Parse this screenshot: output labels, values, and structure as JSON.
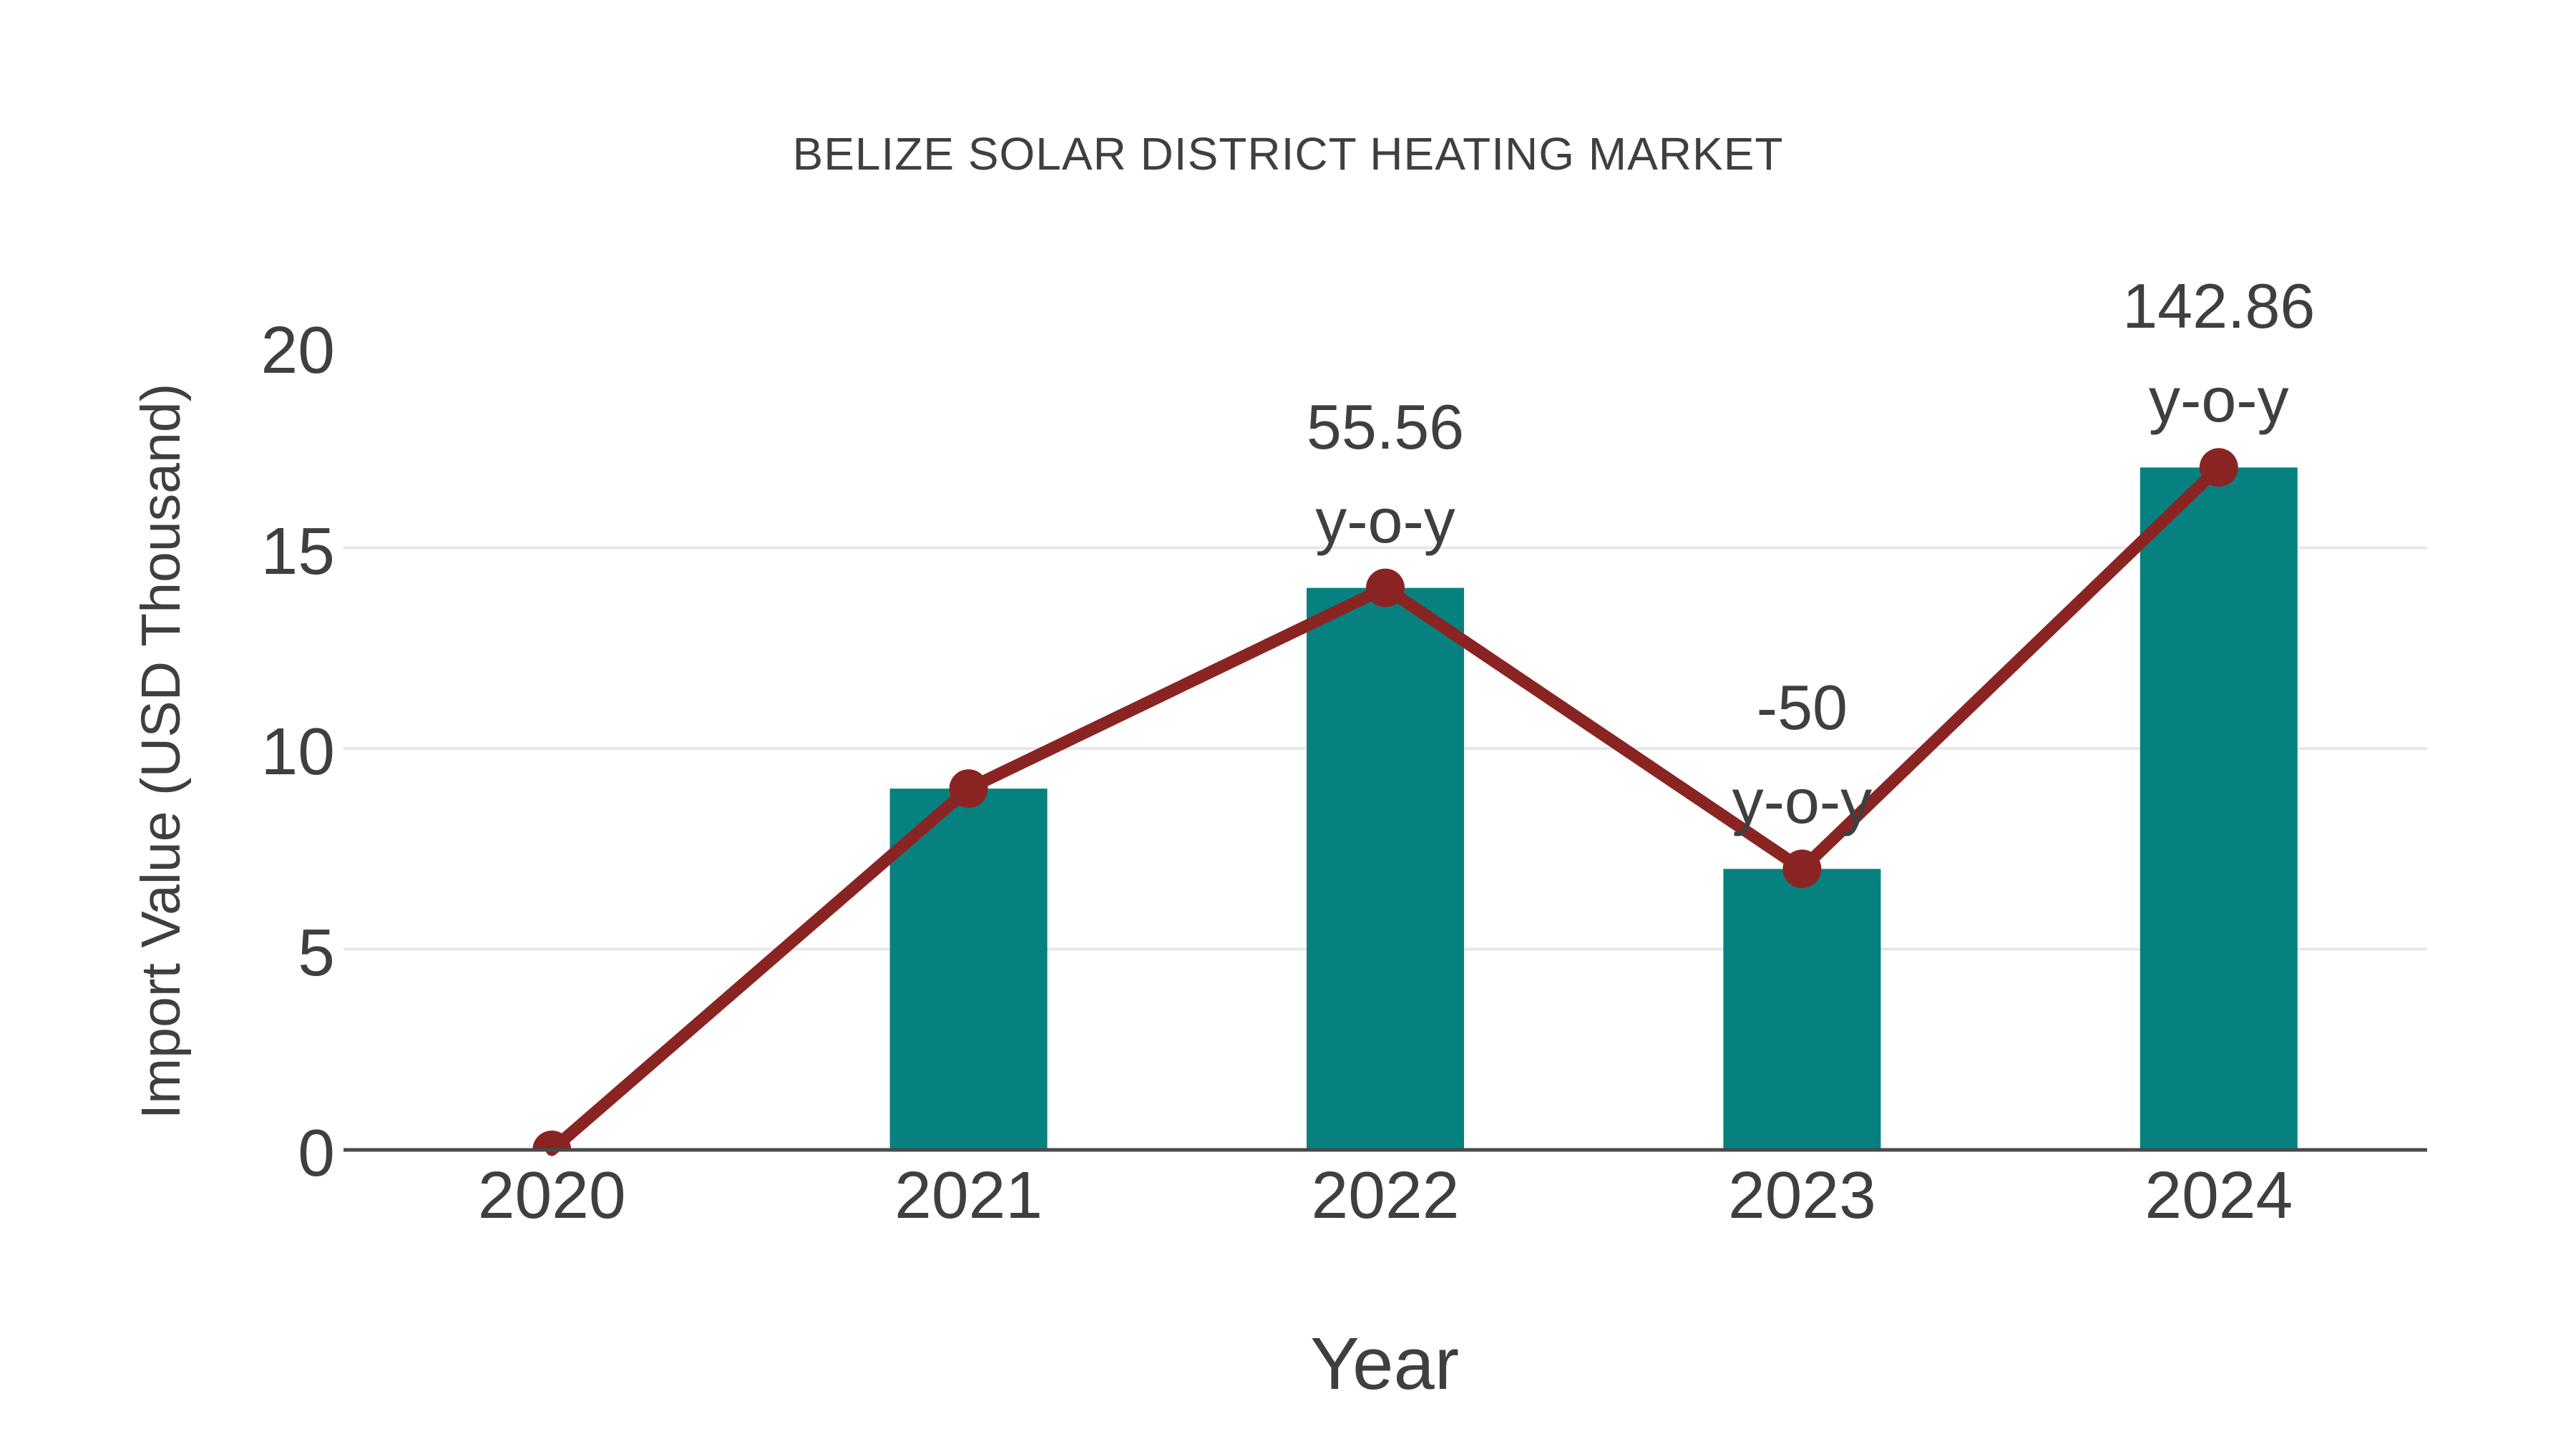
{
  "chart_data": {
    "type": "bar",
    "title": "BELIZE SOLAR DISTRICT HEATING MARKET",
    "xlabel": "Year",
    "ylabel": "Import Value (USD Thousand)",
    "categories": [
      "2020",
      "2021",
      "2022",
      "2023",
      "2024"
    ],
    "series": [
      {
        "name": "import-value-bars",
        "type": "bar",
        "values": [
          0,
          9,
          14,
          7,
          17
        ]
      },
      {
        "name": "import-value-trend",
        "type": "line",
        "values": [
          0,
          9,
          14,
          7,
          17
        ]
      }
    ],
    "ylim": [
      0,
      20
    ],
    "yticks": [
      "0",
      "5",
      "10",
      "15",
      "20"
    ],
    "grid_ticks": [
      5,
      10,
      15
    ],
    "legend_position": "none",
    "annotations": [
      {
        "category": "2022",
        "value_text": "55.56",
        "label_text": "y-o-y"
      },
      {
        "category": "2023",
        "value_text": "-50",
        "label_text": "y-o-y"
      },
      {
        "category": "2024",
        "value_text": "142.86",
        "label_text": "y-o-y"
      }
    ],
    "colors": {
      "bar": "#078180",
      "line": "#8A2423",
      "marker": "#8A2423",
      "grid": "#E7E7E7",
      "axis": "#4A4A4A",
      "text": "#3F3F3F",
      "background": "#FFFFFF"
    }
  }
}
